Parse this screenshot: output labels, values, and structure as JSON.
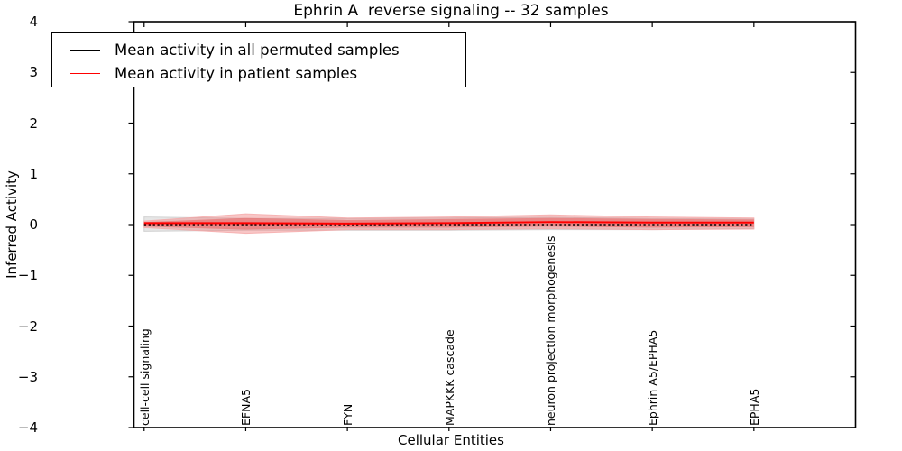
{
  "title": "Ephrin A  reverse signaling -- 32 samples",
  "axes": {
    "xlabel": "Cellular Entities",
    "ylabel": "Inferred Activity",
    "ytick_labels": [
      "4",
      "3",
      "2",
      "1",
      "0",
      "−1",
      "−2",
      "−3",
      "−4"
    ],
    "ytick_values": [
      4,
      3,
      2,
      1,
      0,
      -1,
      -2,
      -3,
      -4
    ]
  },
  "legend": {
    "entries": [
      {
        "label": "Mean activity in all permuted samples",
        "color": "#000000"
      },
      {
        "label": "Mean activity in patient samples",
        "color": "#ff0000"
      }
    ]
  },
  "colors": {
    "axis": "#000000",
    "background": "#ffffff",
    "permuted_line": "#000000",
    "patient_line": "#ff0000",
    "permuted_band_fill": "#e3e3e3",
    "permuted_band_edge": "#c8c8c8",
    "patient_band_outer": "#f08080",
    "patient_band_inner": "#e85c5c"
  },
  "chart_data": {
    "type": "line",
    "title": "Ephrin A  reverse signaling -- 32 samples",
    "xlabel": "Cellular Entities",
    "ylabel": "Inferred Activity",
    "ylim": [
      -4,
      4
    ],
    "xlim": [
      -0.1,
      7.0
    ],
    "grid": false,
    "legend_position": "upper left",
    "categories": [
      "cell-cell signaling",
      "EFNA5",
      "FYN",
      "MAPKKK cascade",
      "neuron projection morphogenesis",
      "Ephrin A5/EPHA5",
      "EPHA5"
    ],
    "x": [
      0,
      1,
      2,
      3,
      4,
      5,
      6
    ],
    "series": [
      {
        "name": "Mean activity in all permuted samples",
        "color": "#000000",
        "linestyle": "dotted",
        "values": [
          0.0,
          0.0,
          0.0,
          0.0,
          0.0,
          0.0,
          0.0
        ]
      },
      {
        "name": "Mean activity in patient samples",
        "color": "#ff0000",
        "linestyle": "solid",
        "values": [
          0.03,
          0.03,
          0.02,
          0.03,
          0.05,
          0.04,
          0.04
        ]
      }
    ],
    "bands": [
      {
        "name": "permuted-samples-range",
        "fill": "#e3e3e3",
        "edge": "#c8c8c8",
        "opacity": 0.9,
        "upper": [
          0.15,
          0.12,
          0.12,
          0.13,
          0.14,
          0.12,
          0.11
        ],
        "lower": [
          -0.13,
          -0.11,
          -0.11,
          -0.11,
          -0.1,
          -0.1,
          -0.08
        ]
      },
      {
        "name": "patient-samples-range-outer",
        "fill": "#f08080",
        "edge": "#f5a8a8",
        "opacity": 0.45,
        "upper": [
          0.07,
          0.21,
          0.13,
          0.15,
          0.19,
          0.15,
          0.13
        ],
        "lower": [
          -0.06,
          -0.17,
          -0.1,
          -0.1,
          -0.08,
          -0.1,
          -0.09
        ]
      },
      {
        "name": "patient-samples-range-inner",
        "fill": "#e85c5c",
        "edge": "none",
        "opacity": 0.55,
        "upper": [
          0.05,
          0.13,
          0.09,
          0.11,
          0.13,
          0.11,
          0.1
        ],
        "lower": [
          -0.04,
          -0.1,
          -0.06,
          -0.06,
          -0.04,
          -0.06,
          -0.05
        ]
      }
    ]
  }
}
